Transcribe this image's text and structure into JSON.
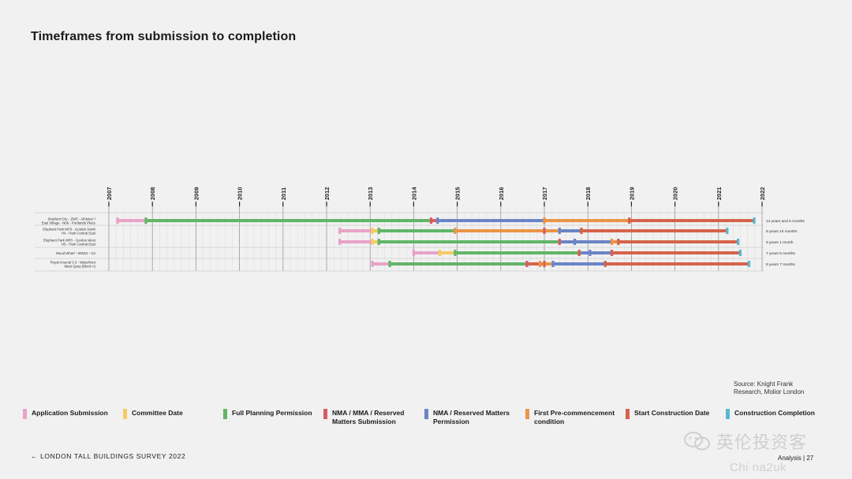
{
  "title": "Timeframes from submission to completion",
  "source": [
    "Source: Knight Frank",
    "Research, Molior London"
  ],
  "footer": {
    "back_arrow": "←",
    "survey": "LONDON TALL BUILDINGS SURVEY 2022",
    "page": "Analysis | 27"
  },
  "watermark": {
    "text": "英伦投资客",
    "domain": "Chi na2uk"
  },
  "colors": {
    "app": "#e7a3c7",
    "committee": "#f5cc62",
    "fpp": "#62b567",
    "nma": "#d75c62",
    "nmap": "#6b84c6",
    "precomm": "#ea9446",
    "start": "#d5634b",
    "complete": "#58b8ce"
  },
  "legend": [
    {
      "key": "app",
      "label": "Application Submission",
      "icon": "pink-swatch"
    },
    {
      "key": "committee",
      "label": "Committee Date",
      "icon": "yellow-swatch"
    },
    {
      "key": "fpp",
      "label": "Full Planning Permission",
      "icon": "green-swatch"
    },
    {
      "key": "nma",
      "label": "NMA / MMA / Reserved Matters Submission",
      "icon": "red-swatch"
    },
    {
      "key": "nmap",
      "label": "NMA / Reserved Matters Permission",
      "icon": "blue-swatch"
    },
    {
      "key": "precomm",
      "label": "First Pre-commencement condition",
      "icon": "orange-swatch"
    },
    {
      "key": "start",
      "label": "Start Construction Date",
      "icon": "red-orange-swatch"
    },
    {
      "key": "complete",
      "label": "Construction Completion",
      "icon": "cyan-swatch"
    }
  ],
  "chart_data": {
    "type": "gantt",
    "x_axis": {
      "type": "year",
      "min": 2007,
      "max": 2022,
      "ticks": [
        "2007",
        "2008",
        "2009",
        "2010",
        "2011",
        "2012",
        "2013",
        "2014",
        "2015",
        "2016",
        "2017",
        "2018",
        "2019",
        "2020",
        "2021",
        "2022"
      ]
    },
    "grid": true,
    "legend_position": "bottom",
    "rows": [
      {
        "label": [
          "Stratford City - ZN/5 - Athletes' /",
          "East Village - N06 - Portlands Place"
        ],
        "duration": "14 years and 5 months",
        "segments": [
          {
            "stage": "app",
            "start": 2007.2,
            "end": 2007.85
          },
          {
            "stage": "fpp",
            "start": 2007.85,
            "end": 2014.4
          },
          {
            "stage": "nma",
            "start": 2014.4,
            "end": 2014.55
          },
          {
            "stage": "nmap",
            "start": 2014.55,
            "end": 2017.0
          },
          {
            "stage": "precomm",
            "start": 2017.0,
            "end": 2018.95
          },
          {
            "stage": "start",
            "start": 2018.95,
            "end": 2021.8
          }
        ],
        "milestones": [
          {
            "stage": "app",
            "date": 2007.2
          },
          {
            "stage": "fpp",
            "date": 2007.85
          },
          {
            "stage": "nma",
            "date": 2014.4
          },
          {
            "stage": "nmap",
            "date": 2014.55
          },
          {
            "stage": "precomm",
            "date": 2017.0
          },
          {
            "stage": "start",
            "date": 2018.95
          },
          {
            "stage": "complete",
            "date": 2021.82
          }
        ]
      },
      {
        "label": [
          "Elephant Park MP3 - Gordon North",
          "H4 - Park Central East"
        ],
        "duration": "8 years 10 months",
        "segments": [
          {
            "stage": "app",
            "start": 2012.3,
            "end": 2013.05
          },
          {
            "stage": "committee",
            "start": 2013.05,
            "end": 2013.2
          },
          {
            "stage": "fpp",
            "start": 2013.2,
            "end": 2014.95
          },
          {
            "stage": "precomm",
            "start": 2014.95,
            "end": 2017.35
          },
          {
            "stage": "nmap",
            "start": 2017.35,
            "end": 2017.85
          },
          {
            "stage": "start",
            "start": 2017.85,
            "end": 2021.2
          }
        ],
        "milestones": [
          {
            "stage": "app",
            "date": 2012.3
          },
          {
            "stage": "committee",
            "date": 2013.05
          },
          {
            "stage": "fpp",
            "date": 2013.2
          },
          {
            "stage": "precomm",
            "date": 2014.95
          },
          {
            "stage": "nma",
            "date": 2017.0
          },
          {
            "stage": "nmap",
            "date": 2017.35
          },
          {
            "stage": "start",
            "date": 2017.85
          },
          {
            "stage": "complete",
            "date": 2021.2
          }
        ]
      },
      {
        "label": [
          "Elephant Park MP3 - Gordon West",
          "H5 - Park Central East"
        ],
        "duration": "9 years 1 month",
        "segments": [
          {
            "stage": "app",
            "start": 2012.3,
            "end": 2013.05
          },
          {
            "stage": "committee",
            "start": 2013.05,
            "end": 2013.2
          },
          {
            "stage": "fpp",
            "start": 2013.2,
            "end": 2017.35
          },
          {
            "stage": "nmap",
            "start": 2017.35,
            "end": 2018.55
          },
          {
            "stage": "precomm",
            "start": 2018.55,
            "end": 2018.7
          },
          {
            "stage": "start",
            "start": 2018.7,
            "end": 2021.45
          }
        ],
        "milestones": [
          {
            "stage": "app",
            "date": 2012.3
          },
          {
            "stage": "committee",
            "date": 2013.05
          },
          {
            "stage": "fpp",
            "date": 2013.2
          },
          {
            "stage": "nma",
            "date": 2017.35
          },
          {
            "stage": "nmap",
            "date": 2017.7
          },
          {
            "stage": "precomm",
            "date": 2018.55
          },
          {
            "stage": "start",
            "date": 2018.7
          },
          {
            "stage": "complete",
            "date": 2021.45
          }
        ]
      },
      {
        "label": [
          "Wood Wharf - WW10 - G2"
        ],
        "duration": "7 years 6 months",
        "segments": [
          {
            "stage": "app",
            "start": 2014.0,
            "end": 2014.6
          },
          {
            "stage": "committee",
            "start": 2014.6,
            "end": 2014.95
          },
          {
            "stage": "fpp",
            "start": 2014.95,
            "end": 2017.8
          },
          {
            "stage": "nmap",
            "start": 2017.8,
            "end": 2018.55
          },
          {
            "stage": "start",
            "start": 2018.55,
            "end": 2021.5
          }
        ],
        "milestones": [
          {
            "stage": "app",
            "date": 2014.0
          },
          {
            "stage": "committee",
            "date": 2014.6
          },
          {
            "stage": "fpp",
            "date": 2014.95
          },
          {
            "stage": "start",
            "date": 2017.8
          },
          {
            "stage": "nmap",
            "date": 2018.05
          },
          {
            "stage": "nma",
            "date": 2018.55
          },
          {
            "stage": "complete",
            "date": 2021.5
          }
        ]
      },
      {
        "label": [
          "Royal Arsenal 3.3 - Waterfront",
          "West Quay (Block A)"
        ],
        "duration": "8 years 7 months",
        "segments": [
          {
            "stage": "app",
            "start": 2013.05,
            "end": 2013.45
          },
          {
            "stage": "fpp",
            "start": 2013.45,
            "end": 2016.6
          },
          {
            "stage": "start",
            "start": 2016.6,
            "end": 2016.95
          },
          {
            "stage": "precomm",
            "start": 2016.95,
            "end": 2017.2
          },
          {
            "stage": "nmap",
            "start": 2017.2,
            "end": 2018.4
          },
          {
            "stage": "start",
            "start": 2018.4,
            "end": 2021.7
          }
        ],
        "milestones": [
          {
            "stage": "app",
            "date": 2013.05
          },
          {
            "stage": "fpp",
            "date": 2013.45
          },
          {
            "stage": "nma",
            "date": 2016.6
          },
          {
            "stage": "precomm",
            "date": 2016.9
          },
          {
            "stage": "start",
            "date": 2017.0
          },
          {
            "stage": "nmap",
            "date": 2017.2
          },
          {
            "stage": "start",
            "date": 2018.4
          },
          {
            "stage": "complete",
            "date": 2021.7
          }
        ]
      }
    ]
  }
}
